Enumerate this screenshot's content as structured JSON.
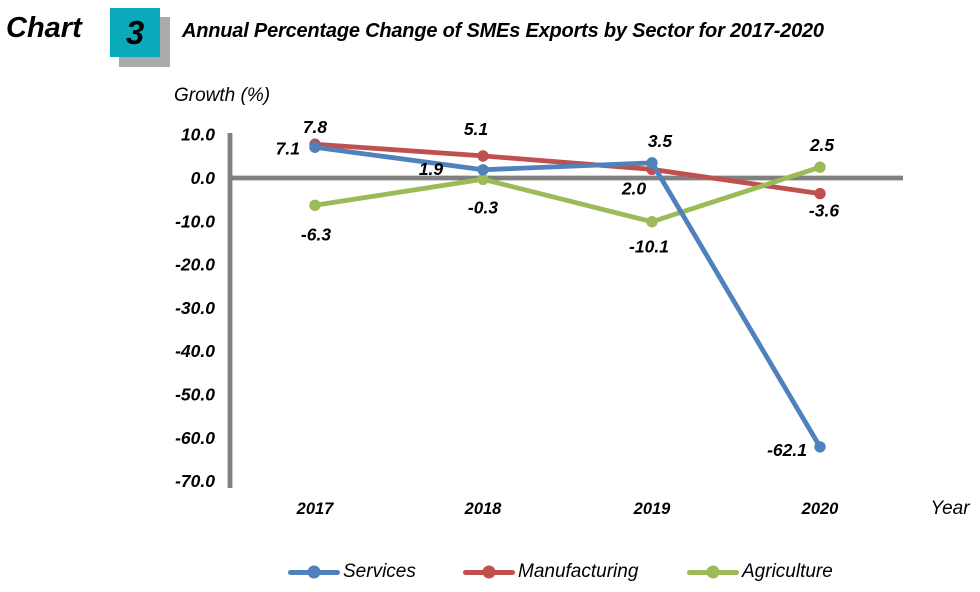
{
  "header": {
    "prefix": "Chart",
    "number": "3",
    "title": "Annual Percentage Change of SMEs Exports by Sector for 2017-2020",
    "badge_color": "#0AAABB",
    "badge_shadow_color": "#ABABAB"
  },
  "chart_data": {
    "type": "line",
    "title": "Annual Percentage Change of SMEs Exports by Sector for 2017-2020",
    "ylabel": "Growth (%)",
    "xlabel": "Year",
    "categories": [
      "2017",
      "2018",
      "2019",
      "2020"
    ],
    "ylim": [
      -70,
      10
    ],
    "ytick_step": 10,
    "yticks": [
      "10.0",
      "0.0",
      "-10.0",
      "-20.0",
      "-30.0",
      "-40.0",
      "-50.0",
      "-60.0",
      "-70.0"
    ],
    "grid": false,
    "legend_position": "bottom",
    "axis_color": "#808080",
    "marker_style": "circle",
    "series": [
      {
        "name": "Services",
        "color": "#4F81BD",
        "values": [
          7.1,
          1.9,
          3.5,
          -62.1
        ],
        "label_offsets": [
          {
            "dx": -15,
            "dy": 7,
            "anchor": "end"
          },
          {
            "dx": -52,
            "dy": 5,
            "anchor": "middle"
          },
          {
            "dx": 8,
            "dy": -16,
            "anchor": "middle"
          },
          {
            "dx": -13,
            "dy": 9,
            "anchor": "end"
          }
        ]
      },
      {
        "name": "Manufacturing",
        "color": "#C0504D",
        "values": [
          7.8,
          5.1,
          2.0,
          -3.6
        ],
        "label_offsets": [
          {
            "dx": 0,
            "dy": -11,
            "anchor": "middle"
          },
          {
            "dx": -7,
            "dy": -21,
            "anchor": "middle"
          },
          {
            "dx": -18,
            "dy": 25,
            "anchor": "middle"
          },
          {
            "dx": 4,
            "dy": 23,
            "anchor": "middle"
          }
        ]
      },
      {
        "name": "Agriculture",
        "color": "#9BBB59",
        "values": [
          -6.3,
          -0.3,
          -10.1,
          2.5
        ],
        "label_offsets": [
          {
            "dx": 1,
            "dy": 35,
            "anchor": "middle"
          },
          {
            "dx": 0,
            "dy": 34,
            "anchor": "middle"
          },
          {
            "dx": -3,
            "dy": 31,
            "anchor": "middle"
          },
          {
            "dx": 2,
            "dy": -16,
            "anchor": "middle"
          }
        ]
      }
    ],
    "draw_order": [
      "Manufacturing",
      "Agriculture",
      "Services"
    ]
  }
}
